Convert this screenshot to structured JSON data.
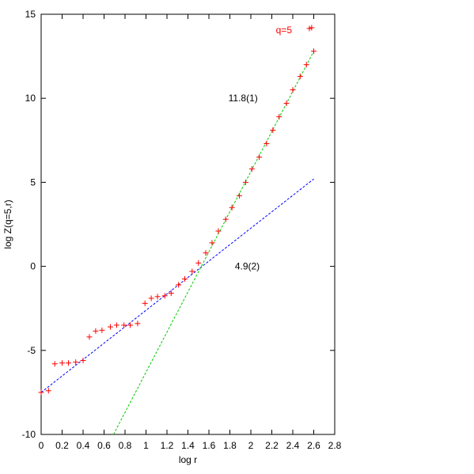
{
  "chart_data": {
    "type": "scatter",
    "title": "",
    "xlabel": "log r",
    "ylabel": "log Z(q=5,r)",
    "xlim": [
      0,
      2.8
    ],
    "ylim": [
      -10,
      15
    ],
    "xticks": [
      "0",
      "0.2",
      "0.4",
      "0.6",
      "0.8",
      "1",
      "1.2",
      "1.4",
      "1.6",
      "1.8",
      "2",
      "2.2",
      "2.4",
      "2.6",
      "2.8"
    ],
    "yticks": [
      "-10",
      "-5",
      "0",
      "5",
      "10",
      "15"
    ],
    "grid": false,
    "legend_position": "top-right",
    "series": [
      {
        "name": "q=5",
        "style": "points",
        "marker": "+",
        "color": "#ff0000",
        "x": [
          0.0,
          0.07,
          0.13,
          0.2,
          0.26,
          0.33,
          0.4,
          0.46,
          0.52,
          0.58,
          0.66,
          0.72,
          0.79,
          0.85,
          0.92,
          0.99,
          1.05,
          1.11,
          1.18,
          1.24,
          1.31,
          1.37,
          1.44,
          1.5,
          1.57,
          1.63,
          1.69,
          1.76,
          1.82,
          1.89,
          1.95,
          2.01,
          2.08,
          2.15,
          2.21,
          2.27,
          2.34,
          2.4,
          2.47,
          2.53,
          2.58,
          2.6
        ],
        "y": [
          -7.5,
          -7.4,
          -5.8,
          -5.75,
          -5.75,
          -5.7,
          -5.6,
          -4.2,
          -3.85,
          -3.8,
          -3.6,
          -3.5,
          -3.5,
          -3.5,
          -3.4,
          -2.2,
          -1.9,
          -1.8,
          -1.75,
          -1.6,
          -1.1,
          -0.75,
          -0.3,
          0.2,
          0.8,
          1.4,
          2.1,
          2.8,
          3.5,
          4.2,
          5.0,
          5.8,
          6.5,
          7.3,
          8.1,
          8.9,
          9.7,
          10.5,
          11.3,
          12.0,
          14.2,
          12.8
        ]
      },
      {
        "name": "",
        "style": "dashed-line",
        "color": "#0000ff",
        "x": [
          0.0,
          2.6
        ],
        "y": [
          -7.5,
          5.2
        ]
      },
      {
        "name": "",
        "style": "dashed-line",
        "color": "#00cc00",
        "x": [
          0.69,
          2.6
        ],
        "y": [
          -10.0,
          12.8
        ]
      }
    ],
    "annotations": [
      {
        "text": "11.8(1)",
        "x": 1.76,
        "y": 10.0
      },
      {
        "text": "4.9(2)",
        "x": 1.8,
        "y": 0.0
      }
    ]
  }
}
